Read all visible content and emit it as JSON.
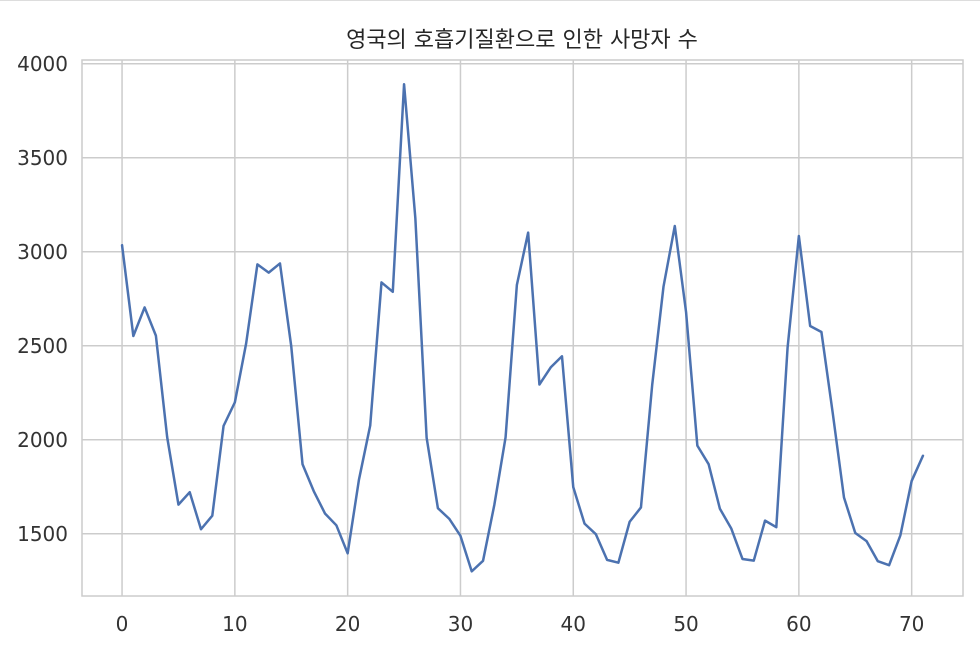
{
  "chart_data": {
    "type": "line",
    "title": "영국의 호흡기질환으로 인한 사망자 수",
    "xlabel": "",
    "ylabel": "",
    "xlim": [
      -3.55,
      74.55
    ],
    "ylim": [
      1169,
      4020
    ],
    "xticks": [
      0,
      10,
      20,
      30,
      40,
      50,
      60,
      70
    ],
    "yticks": [
      1500,
      2000,
      2500,
      3000,
      3500,
      4000
    ],
    "grid": true,
    "colors": {
      "line": "#4c72b0",
      "grid": "#cccccc",
      "background": "#ffffff",
      "spine": "#cccccc"
    },
    "series": [
      {
        "x": [
          0,
          1,
          2,
          3,
          4,
          5,
          6,
          7,
          8,
          9,
          10,
          11,
          12,
          13,
          14,
          15,
          16,
          17,
          18,
          19,
          20,
          21,
          22,
          23,
          24,
          25,
          26,
          27,
          28,
          29,
          30,
          31,
          32,
          33,
          34,
          35,
          36,
          37,
          38,
          39,
          40,
          41,
          42,
          43,
          44,
          45,
          46,
          47,
          48,
          49,
          50,
          51,
          52,
          53,
          54,
          55,
          56,
          57,
          58,
          59,
          60,
          61,
          62,
          63,
          64,
          65,
          66,
          67,
          68,
          69,
          70,
          71
        ],
        "values": [
          3035,
          2552,
          2704,
          2554,
          2014,
          1655,
          1721,
          1524,
          1596,
          2074,
          2199,
          2512,
          2933,
          2889,
          2938,
          2497,
          1870,
          1726,
          1607,
          1545,
          1396,
          1787,
          2076,
          2837,
          2787,
          3891,
          3179,
          2011,
          1636,
          1580,
          1489,
          1300,
          1356,
          1653,
          2013,
          2823,
          3102,
          2294,
          2385,
          2444,
          1748,
          1554,
          1498,
          1361,
          1346,
          1564,
          1640,
          2293,
          2815,
          3137,
          2679,
          1969,
          1870,
          1633,
          1529,
          1366,
          1357,
          1570,
          1535,
          2491,
          3084,
          2605,
          2573,
          2143,
          1693,
          1504,
          1461,
          1354,
          1333,
          1492,
          1781,
          1915
        ]
      }
    ]
  }
}
